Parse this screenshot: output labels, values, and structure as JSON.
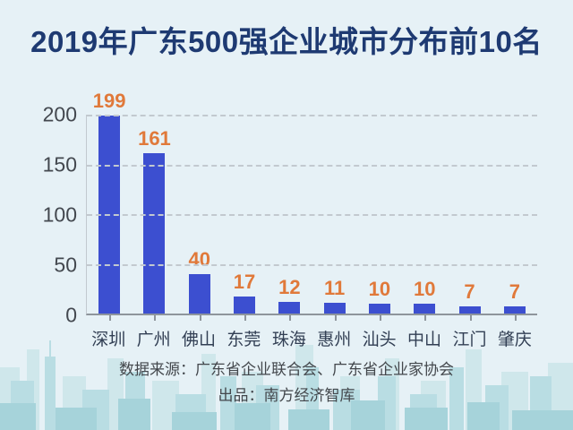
{
  "title": "2019年广东500强企业城市分布前10名",
  "chart_data": {
    "type": "bar",
    "categories": [
      "深圳",
      "广州",
      "佛山",
      "东莞",
      "珠海",
      "惠州",
      "汕头",
      "中山",
      "江门",
      "肇庆"
    ],
    "values": [
      199,
      161,
      40,
      17,
      12,
      11,
      10,
      10,
      7,
      7
    ],
    "title": "2019年广东500强企业城市分布前10名",
    "xlabel": "",
    "ylabel": "",
    "ylim": [
      0,
      200
    ],
    "yticks": [
      0,
      50,
      100,
      150,
      200
    ],
    "grid": "horizontal-dashed",
    "legend": "none",
    "value_labels": "above-bars"
  },
  "footer": {
    "source_line": "数据来源：广东省企业联合会、广东省企业家协会",
    "producer_line": "出品：南方经济智库"
  },
  "colors": {
    "background": "#e6f1f6",
    "title": "#1e3a72",
    "bar": "#3c4fd0",
    "value_label": "#e0793a",
    "axis_label": "#43484f",
    "category_label": "#323f54",
    "gridline": "#c2c9cf",
    "axis_line": "#8e959c",
    "footer_text": "#43474c",
    "skyline_back": "#cfe7eb",
    "skyline_mid": "#b9dde3",
    "skyline_front": "#a6d3da"
  }
}
